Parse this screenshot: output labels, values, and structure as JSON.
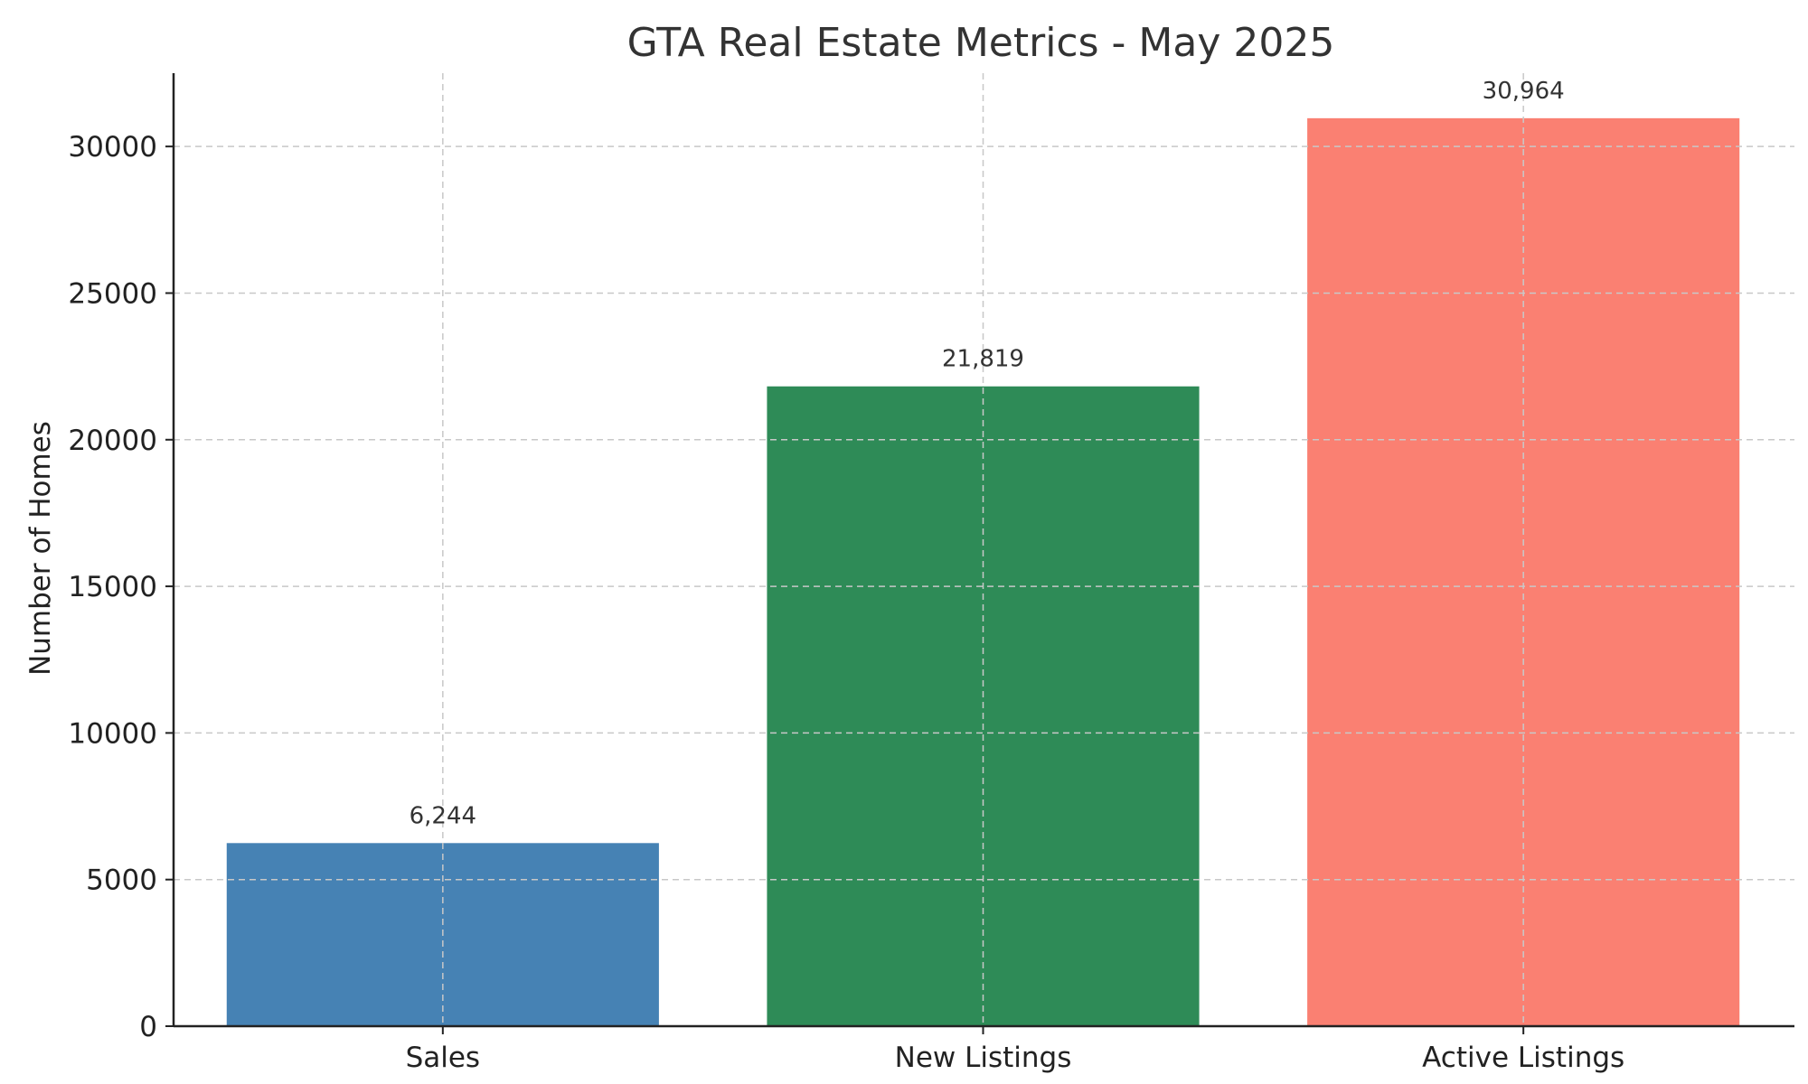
{
  "chart_data": {
    "type": "bar",
    "title": "GTA Real Estate Metrics - May 2025",
    "xlabel": "",
    "ylabel": "Number of Homes",
    "categories": [
      "Sales",
      "New Listings",
      "Active Listings"
    ],
    "values": [
      6244,
      21819,
      30964
    ],
    "value_labels": [
      "6,244",
      "21,819",
      "30,964"
    ],
    "colors": [
      "#4682b4",
      "#2e8b57",
      "#fa8072"
    ],
    "ylim": [
      0,
      32500
    ],
    "yticks": [
      0,
      5000,
      10000,
      15000,
      20000,
      25000,
      30000
    ],
    "ytick_labels": [
      "0",
      "5000",
      "10000",
      "15000",
      "20000",
      "25000",
      "30000"
    ],
    "grid": true
  }
}
